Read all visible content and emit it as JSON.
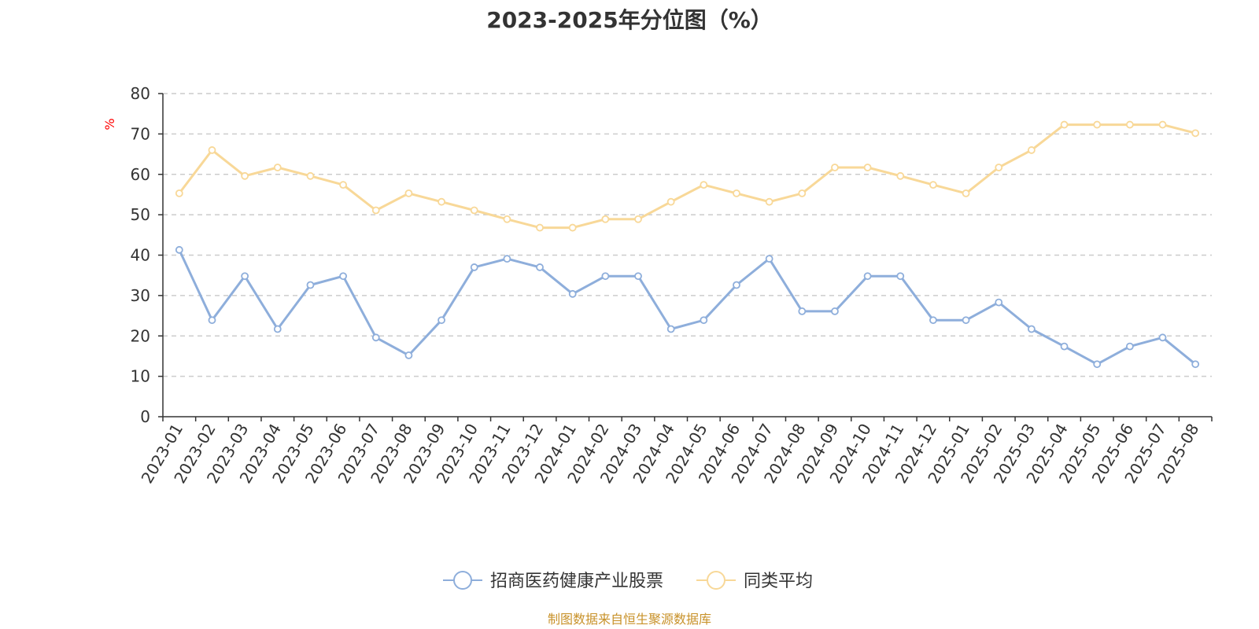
{
  "chart_data": {
    "type": "line",
    "title": "2023-2025年分位图（%）",
    "ylabel": "%",
    "xlabel": "",
    "ylim": [
      0,
      80
    ],
    "yticks": [
      0,
      10,
      20,
      30,
      40,
      50,
      60,
      70,
      80
    ],
    "grid": "horizontal dashed",
    "legend_position": "bottom-center",
    "categories": [
      "2023-01",
      "2023-02",
      "2023-03",
      "2023-04",
      "2023-05",
      "2023-06",
      "2023-07",
      "2023-08",
      "2023-09",
      "2023-10",
      "2023-11",
      "2023-12",
      "2024-01",
      "2024-02",
      "2024-03",
      "2024-04",
      "2024-05",
      "2024-06",
      "2024-07",
      "2024-08",
      "2024-09",
      "2024-10",
      "2024-11",
      "2024-12",
      "2025-01",
      "2025-02",
      "2025-03",
      "2025-04",
      "2025-05",
      "2025-06",
      "2025-07",
      "2025-08"
    ],
    "series": [
      {
        "name": "招商医药健康产业股票",
        "color": "#8eaedb",
        "values": [
          41.3,
          23.9,
          34.8,
          21.7,
          32.6,
          34.8,
          19.6,
          15.2,
          23.9,
          37.0,
          39.1,
          37.0,
          30.4,
          34.8,
          34.8,
          21.7,
          23.9,
          32.6,
          39.1,
          26.1,
          26.1,
          34.8,
          34.8,
          23.9,
          23.9,
          28.3,
          21.7,
          17.4,
          13.0,
          17.4,
          19.6,
          13.0
        ]
      },
      {
        "name": "同类平均",
        "color": "#f8d898",
        "values": [
          55.3,
          66.0,
          59.6,
          61.7,
          59.6,
          57.4,
          51.1,
          55.3,
          53.2,
          51.1,
          48.9,
          46.8,
          46.8,
          48.9,
          48.9,
          53.2,
          57.4,
          55.3,
          53.2,
          55.3,
          61.7,
          61.7,
          59.6,
          57.4,
          55.3,
          61.7,
          66.0,
          72.3,
          72.3,
          72.3,
          72.3,
          70.2
        ]
      }
    ]
  },
  "footer": {
    "source_text": "制图数据来自恒生聚源数据库",
    "source_color": "#c8922a"
  },
  "axis_label_color": "#ff0000"
}
